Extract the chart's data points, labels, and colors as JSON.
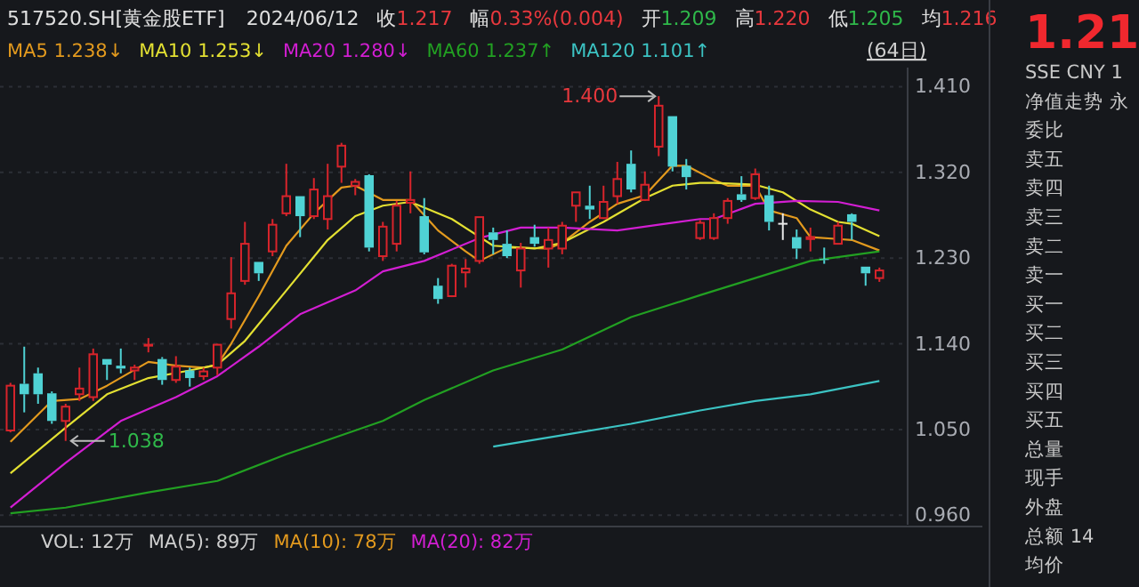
{
  "chart_data": [
    {
      "type": "candlestick",
      "title": "517520.SH[黄金股ETF]",
      "categories": [
        null,
        null,
        null,
        null,
        null,
        null,
        null,
        null,
        null,
        null,
        null,
        null,
        null,
        null,
        null,
        null,
        null,
        null,
        null,
        null,
        null,
        null,
        null,
        null,
        null,
        null,
        null,
        null,
        null,
        null,
        null,
        null,
        null,
        null,
        null,
        null,
        null,
        null,
        null,
        null,
        null,
        null,
        null,
        null,
        null,
        null,
        null,
        null,
        null,
        null,
        null,
        null,
        null,
        null,
        null,
        null,
        null,
        null,
        null,
        null,
        null,
        null,
        null,
        null
      ],
      "ohlc": [
        [
          1.049,
          1.099,
          1.047,
          1.096
        ],
        [
          1.098,
          1.137,
          1.068,
          1.087
        ],
        [
          1.109,
          1.115,
          1.077,
          1.087
        ],
        [
          1.088,
          1.09,
          1.056,
          1.059
        ],
        [
          1.059,
          1.077,
          1.038,
          1.074
        ],
        [
          1.087,
          1.115,
          1.08,
          1.093
        ],
        [
          1.084,
          1.135,
          1.08,
          1.129
        ],
        [
          1.124,
          1.124,
          1.102,
          1.118
        ],
        [
          1.117,
          1.135,
          1.109,
          1.114
        ],
        [
          1.112,
          1.118,
          1.102,
          1.115
        ],
        [
          1.138,
          1.146,
          1.131,
          1.139
        ],
        [
          1.124,
          1.126,
          1.097,
          1.102
        ],
        [
          1.102,
          1.127,
          1.099,
          1.116
        ],
        [
          1.112,
          1.115,
          1.095,
          1.104
        ],
        [
          1.106,
          1.115,
          1.102,
          1.111
        ],
        [
          1.115,
          1.14,
          1.107,
          1.139
        ],
        [
          1.166,
          1.231,
          1.156,
          1.193
        ],
        [
          1.206,
          1.268,
          1.202,
          1.245
        ],
        [
          1.226,
          1.226,
          1.206,
          1.214
        ],
        [
          1.237,
          1.271,
          1.232,
          1.265
        ],
        [
          1.277,
          1.329,
          1.274,
          1.295
        ],
        [
          1.295,
          1.295,
          1.252,
          1.274
        ],
        [
          1.274,
          1.314,
          1.271,
          1.302
        ],
        [
          1.271,
          1.329,
          1.26,
          1.295
        ],
        [
          1.326,
          1.351,
          1.309,
          1.348
        ],
        [
          1.306,
          1.313,
          1.296,
          1.31
        ],
        [
          1.317,
          1.318,
          1.237,
          1.241
        ],
        [
          1.232,
          1.268,
          1.227,
          1.263
        ],
        [
          1.245,
          1.29,
          1.237,
          1.285
        ],
        [
          1.288,
          1.321,
          1.277,
          1.291
        ],
        [
          1.274,
          1.293,
          1.234,
          1.236
        ],
        [
          1.201,
          1.209,
          1.182,
          1.187
        ],
        [
          1.19,
          1.224,
          1.189,
          1.222
        ],
        [
          1.215,
          1.229,
          1.199,
          1.219
        ],
        [
          1.227,
          1.273,
          1.224,
          1.273
        ],
        [
          1.257,
          1.262,
          1.234,
          1.249
        ],
        [
          1.245,
          1.259,
          1.23,
          1.232
        ],
        [
          1.217,
          1.246,
          1.199,
          1.24
        ],
        [
          1.252,
          1.265,
          1.242,
          1.245
        ],
        [
          1.24,
          1.262,
          1.22,
          1.249
        ],
        [
          1.24,
          1.268,
          1.234,
          1.264
        ],
        [
          1.285,
          1.299,
          1.268,
          1.299
        ],
        [
          1.285,
          1.306,
          1.271,
          1.281
        ],
        [
          1.272,
          1.306,
          1.271,
          1.289
        ],
        [
          1.295,
          1.331,
          1.287,
          1.313
        ],
        [
          1.329,
          1.343,
          1.299,
          1.302
        ],
        [
          1.291,
          1.321,
          1.29,
          1.307
        ],
        [
          1.347,
          1.4,
          1.337,
          1.39
        ],
        [
          1.379,
          1.379,
          1.321,
          1.326
        ],
        [
          1.327,
          1.334,
          1.302,
          1.315
        ],
        [
          1.251,
          1.27,
          1.249,
          1.267
        ],
        [
          1.251,
          1.277,
          1.249,
          1.272
        ],
        [
          1.272,
          1.293,
          1.266,
          1.29
        ],
        [
          1.297,
          1.316,
          1.289,
          1.291
        ],
        [
          1.293,
          1.324,
          1.291,
          1.318
        ],
        [
          1.296,
          1.306,
          1.259,
          1.268
        ],
        [
          1.266,
          1.277,
          1.249,
          1.266
        ],
        [
          1.252,
          1.26,
          1.229,
          1.24
        ],
        [
          1.25,
          1.262,
          1.237,
          1.252
        ],
        [
          1.229,
          1.241,
          1.224,
          1.228
        ],
        [
          1.245,
          1.268,
          1.245,
          1.264
        ],
        [
          1.276,
          1.277,
          1.249,
          1.268
        ],
        [
          1.221,
          1.221,
          1.201,
          1.214
        ],
        [
          1.209,
          1.22,
          1.205,
          1.217
        ]
      ],
      "series": [
        {
          "name": "MA5 1.238↓",
          "type": "line",
          "color": "#e39a1e",
          "values": [
            1.037,
            null,
            null,
            1.08,
            null,
            1.082,
            null,
            1.096,
            null,
            null,
            1.121,
            null,
            1.117,
            null,
            1.115,
            1.118,
            1.14,
            null,
            1.19,
            null,
            1.243,
            null,
            1.277,
            null,
            1.304,
            1.306,
            null,
            1.291,
            null,
            1.291,
            null,
            1.259,
            null,
            1.237,
            1.227,
            null,
            1.241,
            null,
            null,
            1.24,
            1.246,
            null,
            1.268,
            null,
            1.287,
            null,
            1.296,
            null,
            1.327,
            1.327,
            null,
            1.312,
            1.306,
            null,
            1.306,
            1.28,
            null,
            1.272,
            1.252,
            null,
            1.25,
            1.249,
            null,
            1.238
          ]
        },
        {
          "name": "MA10 1.253↓",
          "type": "line",
          "color": "#e3e032",
          "values": [
            1.004,
            null,
            null,
            null,
            1.052,
            null,
            null,
            1.087,
            null,
            null,
            1.104,
            null,
            null,
            1.112,
            null,
            1.118,
            null,
            1.143,
            null,
            null,
            1.196,
            null,
            null,
            1.249,
            null,
            1.274,
            null,
            1.285,
            null,
            1.289,
            null,
            null,
            1.271,
            null,
            null,
            1.243,
            null,
            null,
            1.24,
            null,
            1.246,
            null,
            null,
            1.268,
            null,
            null,
            1.293,
            null,
            1.306,
            null,
            1.309,
            1.309,
            null,
            null,
            1.307,
            null,
            1.299,
            null,
            1.281,
            null,
            1.268,
            1.266,
            null,
            1.253
          ]
        },
        {
          "name": "MA20 1.280↓",
          "type": "line",
          "color": "#d21ed2",
          "values": [
            0.968,
            null,
            null,
            null,
            1.015,
            null,
            null,
            null,
            1.059,
            null,
            null,
            null,
            1.084,
            null,
            null,
            1.106,
            null,
            null,
            1.137,
            null,
            null,
            1.171,
            null,
            null,
            null,
            1.196,
            null,
            1.216,
            null,
            null,
            1.227,
            null,
            null,
            null,
            1.251,
            null,
            null,
            1.262,
            null,
            null,
            1.262,
            null,
            null,
            null,
            1.259,
            null,
            null,
            1.265,
            null,
            null,
            1.271,
            1.271,
            null,
            null,
            1.287,
            null,
            null,
            1.29,
            null,
            null,
            1.289,
            null,
            null,
            1.28
          ]
        },
        {
          "name": "MA60 1.237↑",
          "type": "line",
          "color": "#22a022",
          "values": [
            0.962,
            null,
            null,
            null,
            0.968,
            null,
            null,
            null,
            null,
            null,
            0.984,
            null,
            null,
            null,
            null,
            0.996,
            null,
            null,
            null,
            null,
            1.024,
            null,
            null,
            null,
            null,
            1.049,
            null,
            1.059,
            null,
            null,
            1.081,
            null,
            null,
            null,
            null,
            1.112,
            null,
            null,
            null,
            null,
            1.134,
            null,
            null,
            null,
            null,
            1.168,
            null,
            null,
            null,
            null,
            1.191,
            null,
            null,
            null,
            1.209,
            null,
            null,
            null,
            1.227,
            null,
            null,
            null,
            null,
            1.237
          ]
        },
        {
          "name": "MA120 1.101↑",
          "type": "line",
          "color": "#3cc3c3",
          "values": [
            null,
            null,
            null,
            null,
            null,
            null,
            null,
            null,
            null,
            null,
            null,
            null,
            null,
            null,
            null,
            null,
            null,
            null,
            null,
            null,
            null,
            null,
            null,
            null,
            null,
            null,
            null,
            null,
            null,
            null,
            null,
            null,
            null,
            null,
            null,
            1.032,
            null,
            null,
            null,
            null,
            1.044,
            null,
            null,
            null,
            null,
            1.056,
            null,
            null,
            null,
            null,
            1.07,
            null,
            null,
            null,
            1.08,
            null,
            null,
            null,
            1.087,
            null,
            null,
            null,
            null,
            1.101
          ]
        }
      ],
      "ylim": [
        0.95,
        1.43
      ],
      "yticks": [
        {
          "value": 0.96,
          "label": "0.960"
        },
        {
          "value": 1.05,
          "label": "1.050"
        },
        {
          "value": 1.14,
          "label": "1.140"
        },
        {
          "value": 1.23,
          "label": "1.230"
        },
        {
          "value": 1.32,
          "label": "1.320"
        },
        {
          "value": 1.41,
          "label": "1.410"
        }
      ],
      "grid": "y",
      "legend": "top left",
      "tick_labels": "y",
      "annotations": [
        "2024/06/12",
        "收1.217",
        "幅0.33%(0.004)",
        "开1.209",
        "高1.220",
        "低1.205",
        "均1.216",
        "(64日)",
        "1.400",
        "1.038",
        "VOL: 12万",
        "MA(5): 89万",
        "MA(10): 78万",
        "MA(20): 82万"
      ]
    },
    {
      "type": "other",
      "annotations": [
        "1.21",
        "SSE  CNY  1",
        "净值走势 永",
        "委比",
        "卖五",
        "卖四",
        "卖三",
        "卖二",
        "卖一",
        "买一",
        "买二",
        "买三",
        "买四",
        "买五",
        "总量",
        "现手",
        "外盘",
        "总额  14",
        "均价"
      ]
    }
  ]
}
